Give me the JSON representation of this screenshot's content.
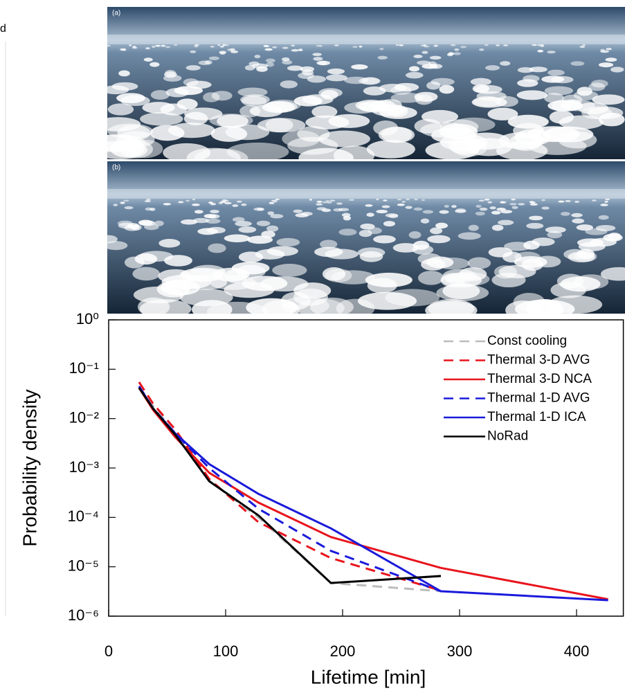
{
  "side_text": "d",
  "panels": [
    {
      "label": "(a)"
    },
    {
      "label": "(b)"
    }
  ],
  "chart_data": {
    "type": "line",
    "x_label": "Lifetime [min]",
    "y_label": "Probability density",
    "log_y": true,
    "x": [
      26,
      38,
      57,
      86,
      128,
      190,
      284,
      427
    ],
    "xlim": [
      0,
      440
    ],
    "xticks": [
      0,
      100,
      200,
      300,
      400
    ],
    "ylim": [
      1e-06,
      1
    ],
    "yticks": [
      {
        "value": 1,
        "label": "10⁰"
      },
      {
        "value": 0.1,
        "label": "10⁻¹"
      },
      {
        "value": 0.01,
        "label": "10⁻²"
      },
      {
        "value": 0.001,
        "label": "10⁻³"
      },
      {
        "value": 0.0001,
        "label": "10⁻⁴"
      },
      {
        "value": 1e-05,
        "label": "10⁻⁵"
      },
      {
        "value": 1e-06,
        "label": "10⁻⁶"
      }
    ],
    "legend": "upper right",
    "series": [
      {
        "name": "Const cooling",
        "color": "#bbbbbb",
        "dash": true,
        "values": [
          0.045,
          0.018,
          0.005,
          0.00055,
          0.0001,
          4.7e-06,
          3.2e-06,
          null
        ]
      },
      {
        "name": "Thermal 3-D AVG",
        "color": "#e8141c",
        "dash": true,
        "values": [
          0.055,
          0.02,
          0.006,
          0.0006,
          8e-05,
          1.5e-05,
          3.3e-06,
          null
        ]
      },
      {
        "name": "Thermal 3-D NCA",
        "color": "#e8141c",
        "dash": false,
        "values": [
          0.042,
          0.015,
          0.0042,
          0.0008,
          0.0002,
          4e-05,
          9.5e-06,
          2.2e-06
        ]
      },
      {
        "name": "Thermal 1-D AVG",
        "color": "#1a1adb",
        "dash": true,
        "values": [
          0.045,
          0.016,
          0.005,
          0.001,
          0.00015,
          2.1e-05,
          3.2e-06,
          null
        ]
      },
      {
        "name": "Thermal 1-D ICA",
        "color": "#1a1adb",
        "dash": false,
        "values": [
          0.045,
          0.016,
          0.005,
          0.0012,
          0.0003,
          6e-05,
          3.2e-06,
          2.1e-06
        ]
      },
      {
        "name": "NoRad",
        "color": "#000000",
        "dash": false,
        "values": [
          0.042,
          0.016,
          0.0047,
          0.00054,
          0.00011,
          4.7e-06,
          6.5e-06,
          null
        ]
      }
    ]
  }
}
